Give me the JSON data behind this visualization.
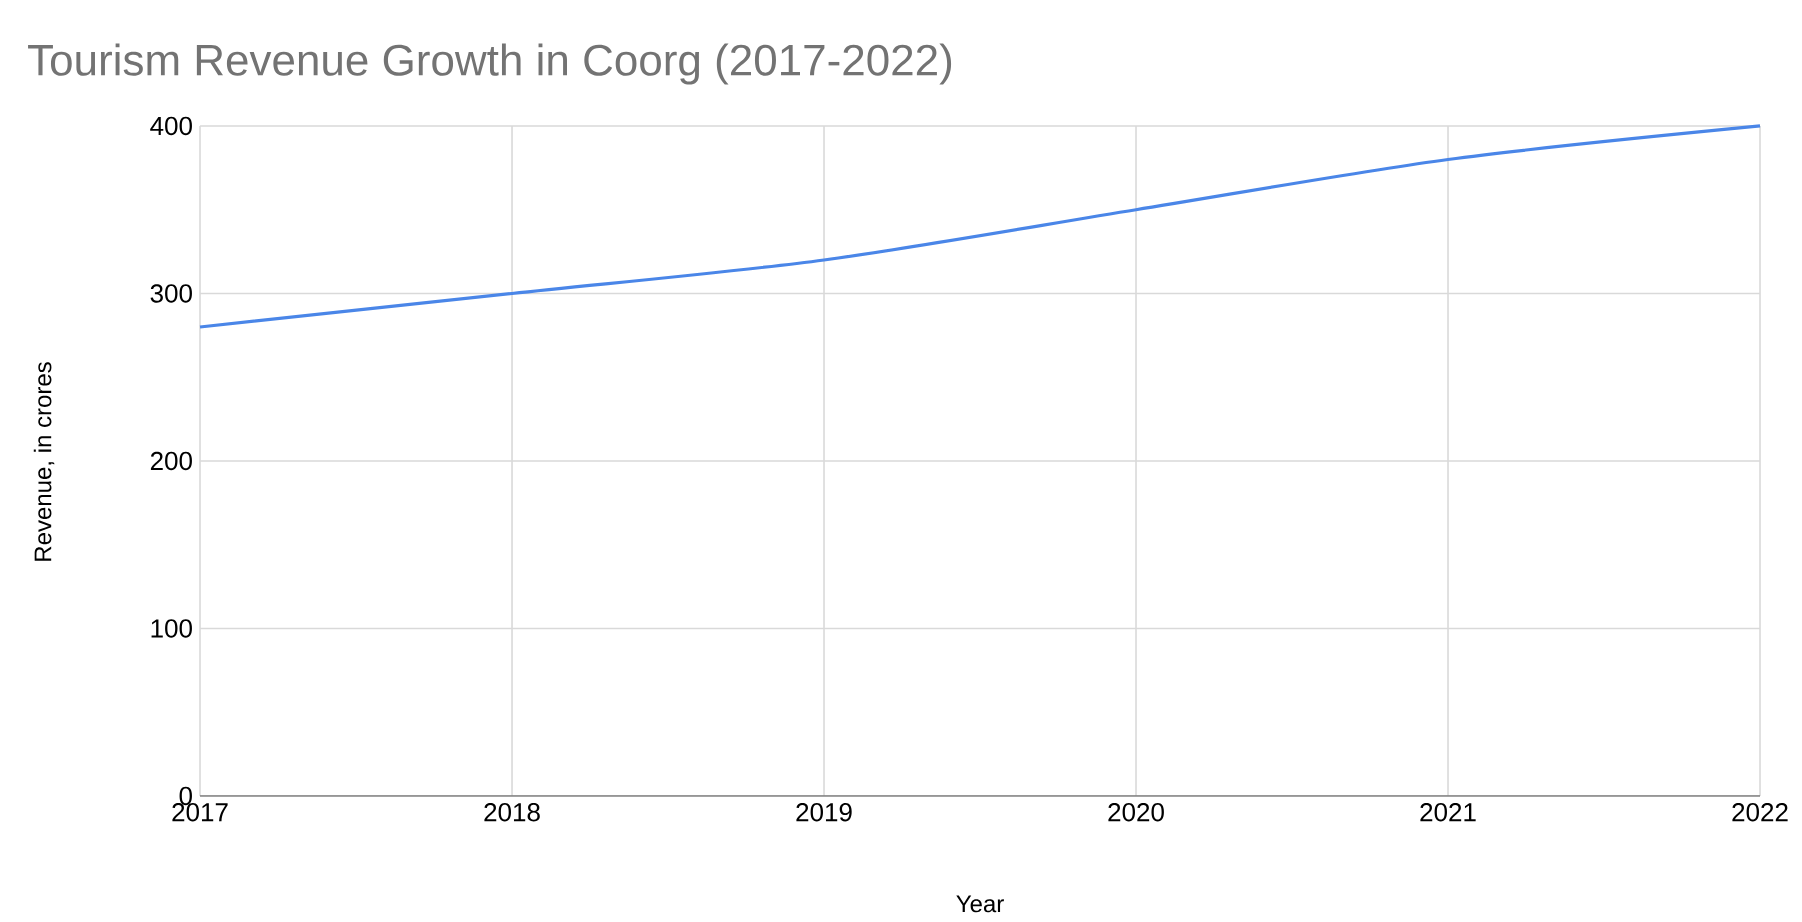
{
  "chart_data": {
    "type": "line",
    "title": "Tourism Revenue Growth in Coorg (2017-2022)",
    "xlabel": "Year",
    "ylabel": "Revenue, in crores",
    "x": [
      2017,
      2018,
      2019,
      2020,
      2021,
      2022
    ],
    "series": [
      {
        "color": "#4a86e8",
        "values": [
          280,
          300,
          320,
          350,
          380,
          400
        ]
      }
    ],
    "xlim": [
      2017,
      2022
    ],
    "xticks": [
      2017,
      2018,
      2019,
      2020,
      2021,
      2022
    ],
    "ylim": [
      0,
      400
    ],
    "yticks": [
      0,
      100,
      200,
      300,
      400
    ],
    "grid": true
  }
}
